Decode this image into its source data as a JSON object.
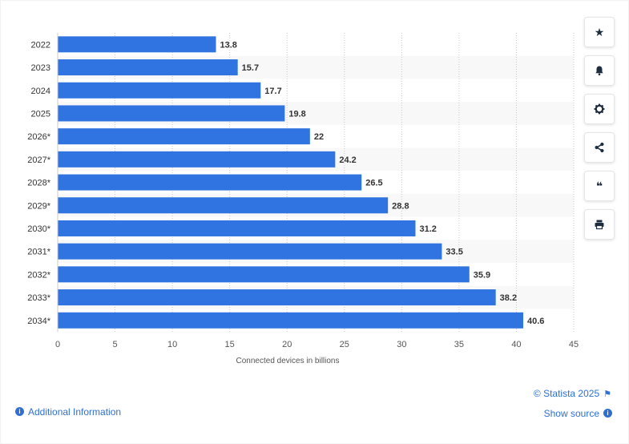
{
  "chart_data": {
    "type": "bar",
    "orientation": "horizontal",
    "categories": [
      "2022",
      "2023",
      "2024",
      "2025",
      "2026*",
      "2027*",
      "2028*",
      "2029*",
      "2030*",
      "2031*",
      "2032*",
      "2033*",
      "2034*"
    ],
    "values": [
      13.8,
      15.7,
      17.7,
      19.8,
      22,
      24.2,
      26.5,
      28.8,
      31.2,
      33.5,
      35.9,
      38.2,
      40.6
    ],
    "value_labels": [
      "13.8",
      "15.7",
      "17.7",
      "19.8",
      "22",
      "24.2",
      "26.5",
      "28.8",
      "31.2",
      "33.5",
      "35.9",
      "38.2",
      "40.6"
    ],
    "xlabel": "Connected devices in billions",
    "xlim": [
      0,
      45
    ],
    "xticks": [
      0,
      5,
      10,
      15,
      20,
      25,
      30,
      35,
      40,
      45
    ],
    "grid": "vertical dotted",
    "bar_color": "#2f74e0"
  },
  "toolbar": {
    "buttons": [
      {
        "name": "star-icon",
        "glyph": "★"
      },
      {
        "name": "bell-icon",
        "glyph": "bell"
      },
      {
        "name": "gear-icon",
        "glyph": "gear"
      },
      {
        "name": "share-icon",
        "glyph": "share"
      },
      {
        "name": "quote-icon",
        "glyph": "❝"
      },
      {
        "name": "print-icon",
        "glyph": "print"
      }
    ]
  },
  "footer": {
    "additional_info": "Additional Information",
    "copyright": "© Statista 2025",
    "show_source": "Show source",
    "info_glyph": "i",
    "flag_glyph": "⚑"
  }
}
